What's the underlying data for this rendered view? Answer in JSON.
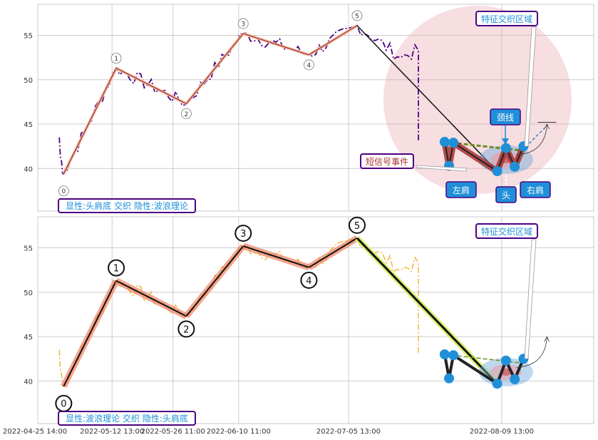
{
  "chart_data": [
    {
      "type": "line",
      "panel": "top",
      "ylim": [
        35.2,
        58.5
      ],
      "yticks": [
        40,
        45,
        50,
        55
      ],
      "x_range": [
        "2022-04-25 14:00",
        "2022-08-30 13:00"
      ],
      "xticks": [
        "2022-04-25 14:00",
        "2022-05-12 13:00",
        "2022-05-26 11:00",
        "2022-06-10 11:00",
        "2022-07-05 13:00",
        "2022-08-09 13:00"
      ],
      "legend_text": "显性:头肩底 交织 隐性:波浪理论",
      "wave_points": [
        {
          "label": "0",
          "x": "2022-05-01",
          "y": 39.4
        },
        {
          "label": "1",
          "x": "2022-05-13",
          "y": 51.3
        },
        {
          "label": "2",
          "x": "2022-05-29",
          "y": 47.3
        },
        {
          "label": "3",
          "x": "2022-06-11",
          "y": 55.2
        },
        {
          "label": "4",
          "x": "2022-06-26",
          "y": 52.8
        },
        {
          "label": "5",
          "x": "2022-07-07",
          "y": 56.1
        }
      ],
      "pattern_points": [
        {
          "x": "2022-07-27",
          "y": 43.0
        },
        {
          "x": "2022-07-28",
          "y": 40.3
        },
        {
          "x": "2022-07-29",
          "y": 42.9
        },
        {
          "x": "2022-08-08",
          "y": 39.7
        },
        {
          "x": "2022-08-10",
          "y": 42.3
        },
        {
          "x": "2022-08-12",
          "y": 40.2
        },
        {
          "x": "2022-08-14",
          "y": 42.5
        }
      ],
      "neckline": [
        {
          "x": "2022-07-27",
          "y": 43.0
        },
        {
          "x": "2022-08-14",
          "y": 42.0
        }
      ],
      "annotations": {
        "feature_zone": "特征交织区域",
        "neckline": "颈线",
        "short_signal": "短信号事件",
        "left_shoulder": "左肩",
        "head": "头",
        "right_shoulder": "右肩"
      }
    },
    {
      "type": "line",
      "panel": "bottom",
      "ylim": [
        35.2,
        58.5
      ],
      "yticks": [
        40,
        45,
        50,
        55
      ],
      "legend_text": "显性:波浪理论 交织 隐性:头肩底",
      "wave_points": [
        {
          "label": "0",
          "x": "2022-05-01",
          "y": 39.4
        },
        {
          "label": "1",
          "x": "2022-05-13",
          "y": 51.3
        },
        {
          "label": "2",
          "x": "2022-05-29",
          "y": 47.3
        },
        {
          "label": "3",
          "x": "2022-06-11",
          "y": 55.2
        },
        {
          "label": "4",
          "x": "2022-06-26",
          "y": 52.8
        },
        {
          "label": "5",
          "x": "2022-07-07",
          "y": 56.1
        }
      ],
      "annotations": {
        "feature_zone": "特征交织区域"
      }
    }
  ],
  "colors": {
    "price_top": "#4b0082",
    "price_bottom": "#f0b030",
    "wave_top": "#c8372d",
    "wave_bottom": "#f08060",
    "pattern": "#a83232",
    "marker": "#1f8fd8",
    "neckline": "#6b8e23",
    "zone": "#e8a0a8",
    "box_border": "#4b0082",
    "box_text": "#1f8fd8",
    "signal_text": "#a83232"
  }
}
